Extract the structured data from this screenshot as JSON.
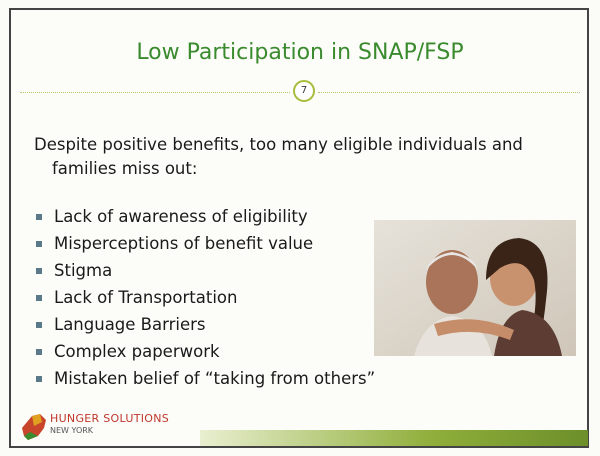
{
  "slide": {
    "title": "Low Participation in SNAP/FSP",
    "number": "7",
    "intro": "Despite positive benefits, too many eligible individuals and families miss out:",
    "bullets": [
      "Lack of awareness of eligibility",
      "Misperceptions of benefit value",
      "Stigma",
      "Lack of Transportation",
      "Language Barriers",
      "Complex paperwork",
      "Mistaken belief of “taking from others”"
    ],
    "logo": {
      "name": "HUNGER SOLUTIONS",
      "region": "NEW YORK"
    }
  }
}
